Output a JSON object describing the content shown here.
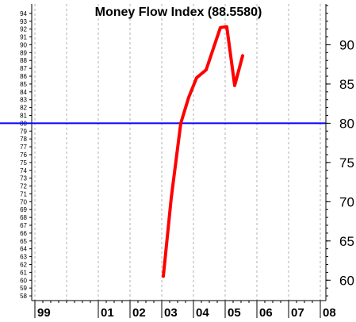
{
  "chart_data": {
    "type": "line",
    "title": "Money Flow Index (88.5580)",
    "xlabel": "",
    "ylabel": "",
    "x_tick_labels": [
      "99",
      "01",
      "02",
      "03",
      "04",
      "05",
      "06",
      "07",
      "08"
    ],
    "left_axis": {
      "range": [
        58,
        94
      ],
      "ticks": [
        94,
        93,
        92,
        91,
        90,
        89,
        88,
        87,
        86,
        85,
        84,
        83,
        82,
        81,
        80,
        79,
        78,
        77,
        76,
        75,
        74,
        73,
        72,
        71,
        70,
        69,
        68,
        67,
        66,
        65,
        64,
        63,
        62,
        61,
        60,
        59,
        58
      ]
    },
    "right_axis": {
      "range": [
        58,
        94
      ],
      "ticks": [
        90,
        85,
        80,
        75,
        70,
        65,
        60
      ]
    },
    "ylim": [
      57.4,
      95.2
    ],
    "grid": {
      "vertical": true,
      "style": "dashed"
    },
    "reference_line": {
      "value": 80,
      "color": "#0000ff"
    },
    "series": [
      {
        "color": "#ff0000",
        "x_unit": "year",
        "points": [
          {
            "x": 2003.05,
            "y": 60.5
          },
          {
            "x": 2003.3,
            "y": 70.5
          },
          {
            "x": 2003.6,
            "y": 80.0
          },
          {
            "x": 2003.85,
            "y": 83.3
          },
          {
            "x": 2004.1,
            "y": 85.8
          },
          {
            "x": 2004.4,
            "y": 86.8
          },
          {
            "x": 2004.65,
            "y": 89.8
          },
          {
            "x": 2004.85,
            "y": 92.2
          },
          {
            "x": 2005.05,
            "y": 92.3
          },
          {
            "x": 2005.3,
            "y": 84.8
          },
          {
            "x": 2005.55,
            "y": 88.6
          }
        ]
      }
    ]
  }
}
